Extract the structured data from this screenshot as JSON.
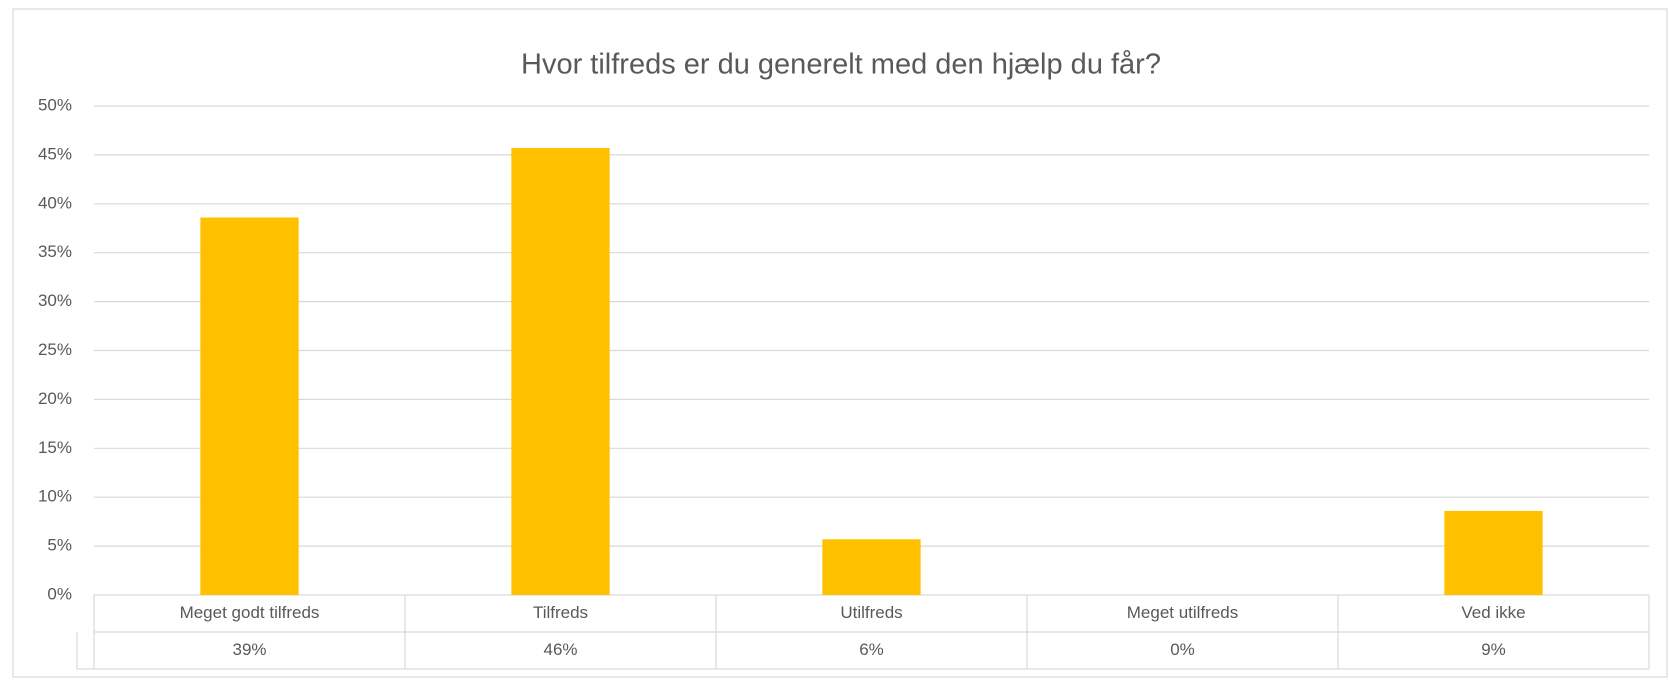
{
  "chart_data": {
    "type": "bar",
    "title": "Hvor tilfreds er du generelt med den hjælp du får?",
    "categories": [
      "Meget godt tilfreds",
      "Tilfreds",
      "Utilfreds",
      "Meget utilfreds",
      "Ved ikke"
    ],
    "values": [
      38.6,
      45.7,
      5.7,
      0,
      8.6
    ],
    "value_labels": [
      "39%",
      "46%",
      "6%",
      "0%",
      "9%"
    ],
    "color": "#FFC000",
    "ylim": [
      0,
      50
    ],
    "yticks": [
      {
        "value": 0,
        "label": "0%"
      },
      {
        "value": 5,
        "label": "5%"
      },
      {
        "value": 10,
        "label": "10%"
      },
      {
        "value": 15,
        "label": "15%"
      },
      {
        "value": 20,
        "label": "20%"
      },
      {
        "value": 25,
        "label": "25%"
      },
      {
        "value": 30,
        "label": "30%"
      },
      {
        "value": 35,
        "label": "35%"
      },
      {
        "value": 40,
        "label": "40%"
      },
      {
        "value": 45,
        "label": "45%"
      },
      {
        "value": 50,
        "label": "50%"
      }
    ],
    "grid": true
  }
}
